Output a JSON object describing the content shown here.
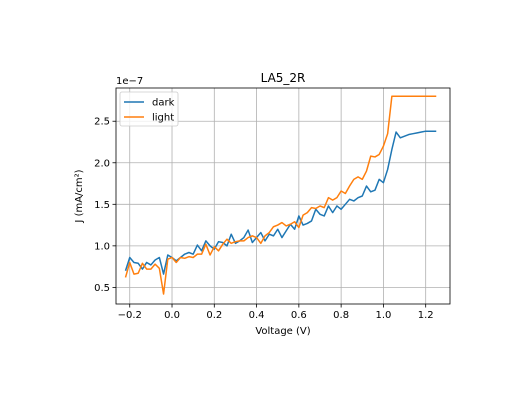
{
  "chart_data": {
    "type": "line",
    "title": "LA5_2R",
    "xlabel": "Voltage (V)",
    "ylabel": "J (mA/cm²)",
    "y_offset_text": "1e−7",
    "xlim": [
      -0.265,
      1.315
    ],
    "ylim": [
      0.3,
      2.9
    ],
    "xticks": [
      -0.2,
      0.0,
      0.2,
      0.4,
      0.6,
      0.8,
      1.0,
      1.2
    ],
    "xtick_labels": [
      "−0.2",
      "0.0",
      "0.2",
      "0.4",
      "0.6",
      "0.8",
      "1.0",
      "1.2"
    ],
    "yticks": [
      0.5,
      1.0,
      1.5,
      2.0,
      2.5
    ],
    "ytick_labels": [
      "0.5",
      "1.0",
      "1.5",
      "2.0",
      "2.5"
    ],
    "grid": true,
    "legend_position": "upper-left",
    "series": [
      {
        "name": "dark",
        "color": "#1f77b4",
        "x": [
          -0.22,
          -0.2,
          -0.18,
          -0.16,
          -0.14,
          -0.12,
          -0.1,
          -0.08,
          -0.06,
          -0.04,
          -0.02,
          0.0,
          0.02,
          0.04,
          0.06,
          0.08,
          0.1,
          0.12,
          0.14,
          0.16,
          0.18,
          0.2,
          0.22,
          0.24,
          0.26,
          0.28,
          0.3,
          0.32,
          0.34,
          0.36,
          0.38,
          0.4,
          0.42,
          0.44,
          0.46,
          0.48,
          0.5,
          0.52,
          0.54,
          0.56,
          0.58,
          0.6,
          0.62,
          0.64,
          0.66,
          0.68,
          0.7,
          0.72,
          0.74,
          0.76,
          0.78,
          0.8,
          0.82,
          0.84,
          0.86,
          0.88,
          0.9,
          0.92,
          0.94,
          0.96,
          0.98,
          1.0,
          1.02,
          1.04,
          1.06,
          1.08,
          1.1,
          1.12,
          1.14,
          1.16,
          1.18,
          1.2,
          1.22,
          1.24,
          1.25
        ],
        "y": [
          0.7,
          0.86,
          0.8,
          0.79,
          0.72,
          0.8,
          0.77,
          0.83,
          0.86,
          0.66,
          0.89,
          0.86,
          0.82,
          0.86,
          0.9,
          0.92,
          0.9,
          1.01,
          0.94,
          1.06,
          1.0,
          0.96,
          1.05,
          1.04,
          1.0,
          1.14,
          1.03,
          1.06,
          1.1,
          1.19,
          1.04,
          1.1,
          1.16,
          1.06,
          1.14,
          1.12,
          1.2,
          1.1,
          1.18,
          1.26,
          1.2,
          1.36,
          1.25,
          1.27,
          1.3,
          1.44,
          1.38,
          1.36,
          1.48,
          1.4,
          1.48,
          1.44,
          1.5,
          1.56,
          1.54,
          1.58,
          1.6,
          1.72,
          1.65,
          1.67,
          1.8,
          1.76,
          1.92,
          2.16,
          2.37,
          2.3,
          2.32,
          2.34,
          2.35,
          2.36,
          2.37,
          2.38,
          2.38,
          2.38,
          2.38
        ]
      },
      {
        "name": "light",
        "color": "#ff7f0e",
        "x": [
          -0.22,
          -0.2,
          -0.18,
          -0.16,
          -0.14,
          -0.12,
          -0.1,
          -0.08,
          -0.06,
          -0.04,
          -0.02,
          0.0,
          0.02,
          0.04,
          0.06,
          0.08,
          0.1,
          0.12,
          0.14,
          0.16,
          0.18,
          0.2,
          0.22,
          0.24,
          0.26,
          0.28,
          0.3,
          0.32,
          0.34,
          0.36,
          0.38,
          0.4,
          0.42,
          0.44,
          0.46,
          0.48,
          0.5,
          0.52,
          0.54,
          0.56,
          0.58,
          0.6,
          0.62,
          0.64,
          0.66,
          0.68,
          0.7,
          0.72,
          0.74,
          0.76,
          0.78,
          0.8,
          0.82,
          0.84,
          0.86,
          0.88,
          0.9,
          0.92,
          0.94,
          0.96,
          0.98,
          1.0,
          1.02,
          1.04,
          1.06,
          1.08,
          1.1,
          1.12,
          1.14,
          1.16,
          1.18,
          1.2,
          1.22,
          1.24,
          1.25
        ],
        "y": [
          0.62,
          0.8,
          0.66,
          0.67,
          0.79,
          0.72,
          0.72,
          0.78,
          0.73,
          0.42,
          0.84,
          0.86,
          0.8,
          0.86,
          0.85,
          0.87,
          0.86,
          0.9,
          0.9,
          1.02,
          0.89,
          0.99,
          0.94,
          1.02,
          1.08,
          1.03,
          1.05,
          1.06,
          1.06,
          1.1,
          1.12,
          1.1,
          1.03,
          1.12,
          1.16,
          1.23,
          1.25,
          1.28,
          1.24,
          1.26,
          1.29,
          1.22,
          1.37,
          1.4,
          1.46,
          1.45,
          1.48,
          1.46,
          1.58,
          1.55,
          1.58,
          1.66,
          1.63,
          1.72,
          1.8,
          1.83,
          1.8,
          1.9,
          2.08,
          2.07,
          2.1,
          2.2,
          2.35,
          2.8,
          2.8,
          2.8,
          2.8,
          2.8,
          2.8,
          2.8,
          2.8,
          2.8,
          2.8,
          2.8,
          2.8
        ]
      }
    ]
  }
}
